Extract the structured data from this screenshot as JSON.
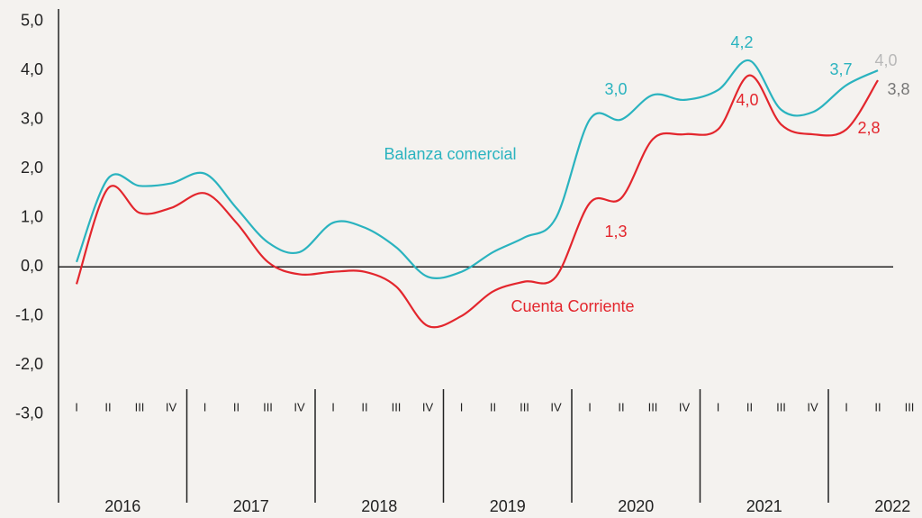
{
  "chart_data": {
    "type": "line",
    "categories": [
      "I",
      "II",
      "III",
      "IV",
      "I",
      "II",
      "III",
      "IV",
      "I",
      "II",
      "III",
      "IV",
      "I",
      "II",
      "III",
      "IV",
      "I",
      "II",
      "III",
      "IV",
      "I",
      "II",
      "III",
      "IV",
      "I",
      "II",
      "III"
    ],
    "years": [
      "2016",
      "2017",
      "2018",
      "2019",
      "2020",
      "2021",
      "2022"
    ],
    "series": [
      {
        "name": "Balanza comercial",
        "color": "#2ab3bf",
        "values": [
          0.1,
          1.8,
          1.65,
          1.7,
          1.9,
          1.2,
          0.5,
          0.3,
          0.9,
          0.8,
          0.4,
          -0.2,
          -0.1,
          0.3,
          0.6,
          1.0,
          3.0,
          3.0,
          3.5,
          3.4,
          3.6,
          4.2,
          3.2,
          3.15,
          3.7,
          4.0,
          null
        ]
      },
      {
        "name": "Cuenta Corriente",
        "color": "#e3262d",
        "values": [
          -0.35,
          1.6,
          1.1,
          1.2,
          1.5,
          0.9,
          0.1,
          -0.15,
          -0.1,
          -0.1,
          -0.4,
          -1.2,
          -1.0,
          -0.5,
          -0.3,
          -0.2,
          1.3,
          1.4,
          2.6,
          2.7,
          2.8,
          3.9,
          2.9,
          2.7,
          2.8,
          3.8,
          null
        ]
      }
    ],
    "annotations": [
      {
        "text": "3,0",
        "color": "#2ab3bf"
      },
      {
        "text": "4,2",
        "color": "#2ab3bf"
      },
      {
        "text": "3,7",
        "color": "#2ab3bf"
      },
      {
        "text": "4,0",
        "color": "#b8b8b8"
      },
      {
        "text": "3,8",
        "color": "#777777"
      },
      {
        "text": "4,0",
        "color": "#e3262d"
      },
      {
        "text": "2,8",
        "color": "#e3262d"
      },
      {
        "text": "1,3",
        "color": "#e3262d"
      }
    ],
    "ylim": [
      -4.8,
      5.25
    ],
    "yticks": [
      {
        "value": 5,
        "label": "5,0"
      },
      {
        "value": 4,
        "label": "4,0"
      },
      {
        "value": 3,
        "label": "3,0"
      },
      {
        "value": 2,
        "label": "2,0"
      },
      {
        "value": 1,
        "label": "1,0"
      },
      {
        "value": 0,
        "label": "0,0"
      },
      {
        "value": -1,
        "label": "-1,0"
      },
      {
        "value": -2,
        "label": "-2,0"
      },
      {
        "value": -3,
        "label": "-3,0"
      }
    ]
  }
}
